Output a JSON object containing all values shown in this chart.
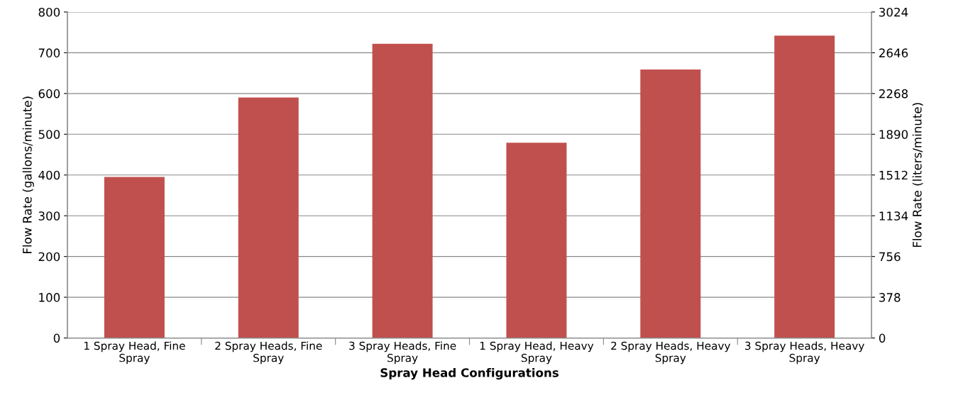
{
  "chart_data": {
    "type": "bar",
    "categories": [
      "1 Spray Head, Fine\nSpray",
      "2 Spray Heads, Fine\nSpray",
      "3 Spray Heads, Fine\nSpray",
      "1 Spray Head, Heavy\nSpray",
      "2 Spray Heads, Heavy\nSpray",
      "3 Spray Heads, Heavy\nSpray"
    ],
    "series": [
      {
        "color": "#c0504d",
        "values": [
          395,
          590,
          722,
          479,
          659,
          742
        ]
      }
    ],
    "xlabel": "Spray Head Configurations",
    "ylabel": "Flow Rate (gallons/minute)",
    "y2label": "Flow Rate (liters/minute)",
    "ylim": [
      0,
      800
    ],
    "yticks": [
      0,
      100,
      200,
      300,
      400,
      500,
      600,
      700,
      800
    ],
    "y2lim": [
      0,
      3024
    ],
    "y2ticks": [
      0,
      378,
      756,
      1134,
      1512,
      1890,
      2268,
      2646,
      3024
    ],
    "grid": "y"
  }
}
